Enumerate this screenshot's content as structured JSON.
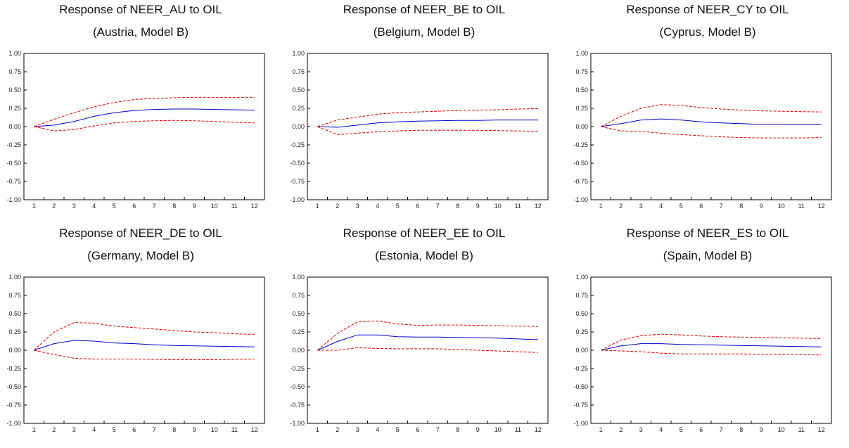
{
  "chart_data": [
    {
      "type": "line",
      "title": "Response of NEER_AU to OIL",
      "subtitle": "(Austria, Model B)",
      "x": [
        1,
        2,
        3,
        4,
        5,
        6,
        7,
        8,
        9,
        10,
        11,
        12
      ],
      "ylim": [
        -1.0,
        1.0
      ],
      "yticks": [
        "1.00",
        "0.75",
        "0.50",
        "0.25",
        "0.00",
        "-0.25",
        "-0.50",
        "-0.75",
        "-1.00"
      ],
      "xticks": [
        "1",
        "2",
        "3",
        "4",
        "5",
        "6",
        "7",
        "8",
        "9",
        "10",
        "11",
        "12"
      ],
      "grid": false,
      "series": [
        {
          "role": "response",
          "color": "#0000cc",
          "style": "solid",
          "values": [
            0.0,
            0.02,
            0.07,
            0.14,
            0.19,
            0.22,
            0.235,
            0.24,
            0.24,
            0.235,
            0.23,
            0.225
          ]
        },
        {
          "role": "upper-band",
          "color": "#dd0000",
          "style": "dashed",
          "values": [
            0.0,
            0.1,
            0.19,
            0.27,
            0.33,
            0.37,
            0.385,
            0.395,
            0.4,
            0.4,
            0.4,
            0.4
          ]
        },
        {
          "role": "lower-band",
          "color": "#dd0000",
          "style": "dashed",
          "values": [
            0.0,
            -0.06,
            -0.04,
            0.01,
            0.05,
            0.07,
            0.08,
            0.085,
            0.08,
            0.07,
            0.06,
            0.05
          ]
        }
      ]
    },
    {
      "type": "line",
      "title": "Response of NEER_BE to OIL",
      "subtitle": "(Belgium, Model B)",
      "x": [
        1,
        2,
        3,
        4,
        5,
        6,
        7,
        8,
        9,
        10,
        11,
        12
      ],
      "ylim": [
        -1.0,
        1.0
      ],
      "yticks": [
        "1.00",
        "0.75",
        "0.50",
        "0.25",
        "0.00",
        "-0.25",
        "-0.50",
        "-0.75",
        "-1.00"
      ],
      "xticks": [
        "1",
        "2",
        "3",
        "4",
        "5",
        "6",
        "7",
        "8",
        "9",
        "10",
        "11",
        "12"
      ],
      "grid": false,
      "series": [
        {
          "role": "response",
          "color": "#0000cc",
          "style": "solid",
          "values": [
            0.0,
            -0.01,
            0.02,
            0.05,
            0.065,
            0.075,
            0.08,
            0.085,
            0.085,
            0.09,
            0.09,
            0.09
          ]
        },
        {
          "role": "upper-band",
          "color": "#dd0000",
          "style": "dashed",
          "values": [
            0.0,
            0.09,
            0.13,
            0.17,
            0.19,
            0.2,
            0.21,
            0.22,
            0.225,
            0.23,
            0.24,
            0.245
          ]
        },
        {
          "role": "lower-band",
          "color": "#dd0000",
          "style": "dashed",
          "values": [
            0.0,
            -0.11,
            -0.09,
            -0.07,
            -0.06,
            -0.05,
            -0.05,
            -0.05,
            -0.05,
            -0.055,
            -0.06,
            -0.065
          ]
        }
      ]
    },
    {
      "type": "line",
      "title": "Response of NEER_CY to OIL",
      "subtitle": "(Cyprus, Model B)",
      "x": [
        1,
        2,
        3,
        4,
        5,
        6,
        7,
        8,
        9,
        10,
        11,
        12
      ],
      "ylim": [
        -1.0,
        1.0
      ],
      "yticks": [
        "1.00",
        "0.75",
        "0.50",
        "0.25",
        "0.00",
        "-0.25",
        "-0.50",
        "-0.75",
        "-1.00"
      ],
      "xticks": [
        "1",
        "2",
        "3",
        "4",
        "5",
        "6",
        "7",
        "8",
        "9",
        "10",
        "11",
        "12"
      ],
      "grid": false,
      "series": [
        {
          "role": "response",
          "color": "#0000cc",
          "style": "solid",
          "values": [
            0.0,
            0.04,
            0.09,
            0.105,
            0.09,
            0.065,
            0.05,
            0.04,
            0.03,
            0.03,
            0.025,
            0.025
          ]
        },
        {
          "role": "upper-band",
          "color": "#dd0000",
          "style": "dashed",
          "values": [
            0.0,
            0.14,
            0.25,
            0.3,
            0.29,
            0.26,
            0.24,
            0.225,
            0.215,
            0.21,
            0.205,
            0.2
          ]
        },
        {
          "role": "lower-band",
          "color": "#dd0000",
          "style": "dashed",
          "values": [
            0.0,
            -0.06,
            -0.065,
            -0.09,
            -0.11,
            -0.125,
            -0.14,
            -0.15,
            -0.155,
            -0.155,
            -0.155,
            -0.15
          ]
        }
      ]
    },
    {
      "type": "line",
      "title": "Response of NEER_DE to OIL",
      "subtitle": "(Germany, Model B)",
      "x": [
        1,
        2,
        3,
        4,
        5,
        6,
        7,
        8,
        9,
        10,
        11,
        12
      ],
      "ylim": [
        -1.0,
        1.0
      ],
      "yticks": [
        "1.00",
        "0.75",
        "0.50",
        "0.25",
        "0.00",
        "-0.25",
        "-0.50",
        "-0.75",
        "-1.00"
      ],
      "xticks": [
        "1",
        "2",
        "3",
        "4",
        "5",
        "6",
        "7",
        "8",
        "9",
        "10",
        "11",
        "12"
      ],
      "grid": false,
      "series": [
        {
          "role": "response",
          "color": "#0000cc",
          "style": "solid",
          "values": [
            0.0,
            0.09,
            0.135,
            0.125,
            0.1,
            0.09,
            0.075,
            0.065,
            0.06,
            0.055,
            0.05,
            0.045
          ]
        },
        {
          "role": "upper-band",
          "color": "#dd0000",
          "style": "dashed",
          "values": [
            0.0,
            0.25,
            0.38,
            0.37,
            0.33,
            0.31,
            0.29,
            0.27,
            0.25,
            0.24,
            0.225,
            0.215
          ]
        },
        {
          "role": "lower-band",
          "color": "#dd0000",
          "style": "dashed",
          "values": [
            0.0,
            -0.06,
            -0.11,
            -0.12,
            -0.12,
            -0.12,
            -0.125,
            -0.13,
            -0.13,
            -0.13,
            -0.125,
            -0.12
          ]
        }
      ]
    },
    {
      "type": "line",
      "title": "Response of NEER_EE to OIL",
      "subtitle": "(Estonia, Model B)",
      "x": [
        1,
        2,
        3,
        4,
        5,
        6,
        7,
        8,
        9,
        10,
        11,
        12
      ],
      "ylim": [
        -1.0,
        1.0
      ],
      "yticks": [
        "1.00",
        "0.75",
        "0.50",
        "0.25",
        "0.00",
        "-0.25",
        "-0.50",
        "-0.75",
        "-1.00"
      ],
      "xticks": [
        "1",
        "2",
        "3",
        "4",
        "5",
        "6",
        "7",
        "8",
        "9",
        "10",
        "11",
        "12"
      ],
      "grid": false,
      "series": [
        {
          "role": "response",
          "color": "#0000cc",
          "style": "solid",
          "values": [
            0.0,
            0.12,
            0.21,
            0.21,
            0.185,
            0.18,
            0.18,
            0.175,
            0.17,
            0.165,
            0.155,
            0.145
          ]
        },
        {
          "role": "upper-band",
          "color": "#dd0000",
          "style": "dashed",
          "values": [
            0.0,
            0.23,
            0.39,
            0.4,
            0.36,
            0.34,
            0.345,
            0.345,
            0.34,
            0.335,
            0.33,
            0.325
          ]
        },
        {
          "role": "lower-band",
          "color": "#dd0000",
          "style": "dashed",
          "values": [
            0.0,
            0.0,
            0.035,
            0.025,
            0.02,
            0.02,
            0.02,
            0.01,
            0.0,
            -0.01,
            -0.02,
            -0.03
          ]
        }
      ]
    },
    {
      "type": "line",
      "title": "Response of NEER_ES to OIL",
      "subtitle": "(Spain, Model B)",
      "x": [
        1,
        2,
        3,
        4,
        5,
        6,
        7,
        8,
        9,
        10,
        11,
        12
      ],
      "ylim": [
        -1.0,
        1.0
      ],
      "yticks": [
        "1.00",
        "0.75",
        "0.50",
        "0.25",
        "0.00",
        "-0.25",
        "-0.50",
        "-0.75",
        "-1.00"
      ],
      "xticks": [
        "1",
        "2",
        "3",
        "4",
        "5",
        "6",
        "7",
        "8",
        "9",
        "10",
        "11",
        "12"
      ],
      "grid": false,
      "series": [
        {
          "role": "response",
          "color": "#0000cc",
          "style": "solid",
          "values": [
            0.0,
            0.06,
            0.09,
            0.09,
            0.08,
            0.075,
            0.07,
            0.065,
            0.06,
            0.055,
            0.05,
            0.045
          ]
        },
        {
          "role": "upper-band",
          "color": "#dd0000",
          "style": "dashed",
          "values": [
            0.0,
            0.14,
            0.2,
            0.22,
            0.21,
            0.195,
            0.185,
            0.18,
            0.175,
            0.17,
            0.165,
            0.16
          ]
        },
        {
          "role": "lower-band",
          "color": "#dd0000",
          "style": "dashed",
          "values": [
            0.0,
            -0.01,
            -0.02,
            -0.04,
            -0.05,
            -0.05,
            -0.05,
            -0.05,
            -0.055,
            -0.055,
            -0.06,
            -0.065
          ]
        }
      ]
    }
  ]
}
